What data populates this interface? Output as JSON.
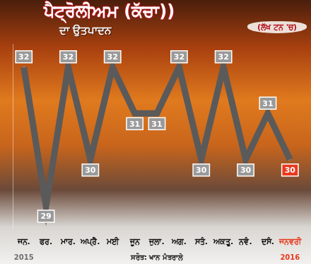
{
  "chart_data": {
    "type": "line",
    "title": "ਪੈਟ੍ਰੋਲੀਅਮ (ਕੱਚਾ))",
    "subtitle": "ਦਾ ਉਤਪਾਦਨ",
    "ylabel": "(ਲੱਖ ਟਨ 'ਚ)",
    "source": "ਸਰੋਤ: ਖਾਨ ਮੰਤਰਾਲੇ",
    "annotations": [
      {
        "text": "2015",
        "at": "ਜਨ."
      },
      {
        "text": "2016",
        "at": "ਜਨਵਰੀ"
      }
    ],
    "categories": [
      "ਜਨ.",
      "ਫਰ.",
      "ਮਾਰ.",
      "ਅਪ੍ਰੈ.",
      "ਮਈ",
      "ਜੂਨ",
      "ਜੁਲਾ.",
      "ਅਗ.",
      "ਸਤੰ.",
      "ਅਕਤੂ.",
      "ਨਵੰ.",
      "ਦਸੰ.",
      "ਜਨਵਰੀ"
    ],
    "values": [
      32,
      29,
      32,
      30,
      32,
      31,
      31,
      32,
      30,
      32,
      30,
      31,
      30
    ],
    "color": "#ffffff",
    "colors": [
      "#9a9a9a",
      "#9a9a9a",
      "#9a9a9a",
      "#9a9a9a",
      "#9a9a9a",
      "#9a9a9a",
      "#9a9a9a",
      "#9a9a9a",
      "#9a9a9a",
      "#9a9a9a",
      "#9a9a9a",
      "#9a9a9a",
      "#e8391d"
    ],
    "ylim": [
      28.5,
      32.5
    ],
    "grid": false,
    "data_labels": true,
    "tick_labels": "x",
    "marker": "none",
    "line_style": "solid"
  }
}
